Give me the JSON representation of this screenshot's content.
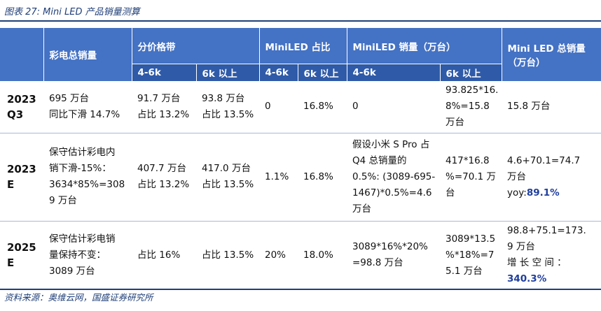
{
  "caption": "图表 27:  Mini LED 产品销量测算",
  "headers": {
    "total": "彩电总销量",
    "price_band": "分价格带",
    "miniled_share": "MiniLED 占比",
    "miniled_sales": "MiniLED 销量（万台）",
    "mini_total": "Mini LED 总销量（万台）",
    "sub_4_6k_a": "4-6k",
    "sub_6k_a": "6k 以上",
    "sub_4_6k_b": "4-6k",
    "sub_6k_b": "6k 以上",
    "sub_4_6k_c": "4-6k",
    "sub_6k_c": "6k 以上"
  },
  "rows": [
    {
      "year": "2023\nQ3",
      "total": "695 万台\n同比下滑 14.7%",
      "p46": "91.7 万台\n占比 13.2%",
      "p6k": "93.8 万台\n占比 13.5%",
      "s46": "0",
      "s6k": "16.8%",
      "m46": "0",
      "m6k": "93.825*16.\n8%=15.8\n万台",
      "mtotal": "15.8 万台",
      "mtotal_hl": ""
    },
    {
      "year": "2023\nE",
      "total": "保守估计彩电内\n销下滑-15%：\n3634*85%=308\n9 万台",
      "p46": "407.7 万台\n占比 13.2%",
      "p6k": "417.0 万台\n占比 13.5%",
      "s46": "1.1%",
      "s6k": "16.8%",
      "m46": "假设小米 S Pro 占\nQ4 总销量的\n0.5%: (3089-695-\n1467)*0.5%=4.6\n万台",
      "m6k": "417*16.8\n%=70.1 万\n台",
      "mtotal": "4.6+70.1=74.7\n万台\nyoy:",
      "mtotal_hl": "89.1%"
    },
    {
      "year": "2025\nE",
      "total": "保守估计彩电销\n量保持不变：\n3089 万台",
      "p46": "占比 16%",
      "p6k": "占比 13.5%",
      "s46": "20%",
      "s6k": "18.0%",
      "m46": "3089*16%*20%\n=98.8 万台",
      "m6k": "3089*13.5\n%*18%=7\n5.1 万台",
      "mtotal": "98.8+75.1=173.\n9 万台\n增 长 空 间 ：",
      "mtotal_hl": "340.3%"
    }
  ],
  "source": "资料来源：奥维云网，国盛证券研究所"
}
